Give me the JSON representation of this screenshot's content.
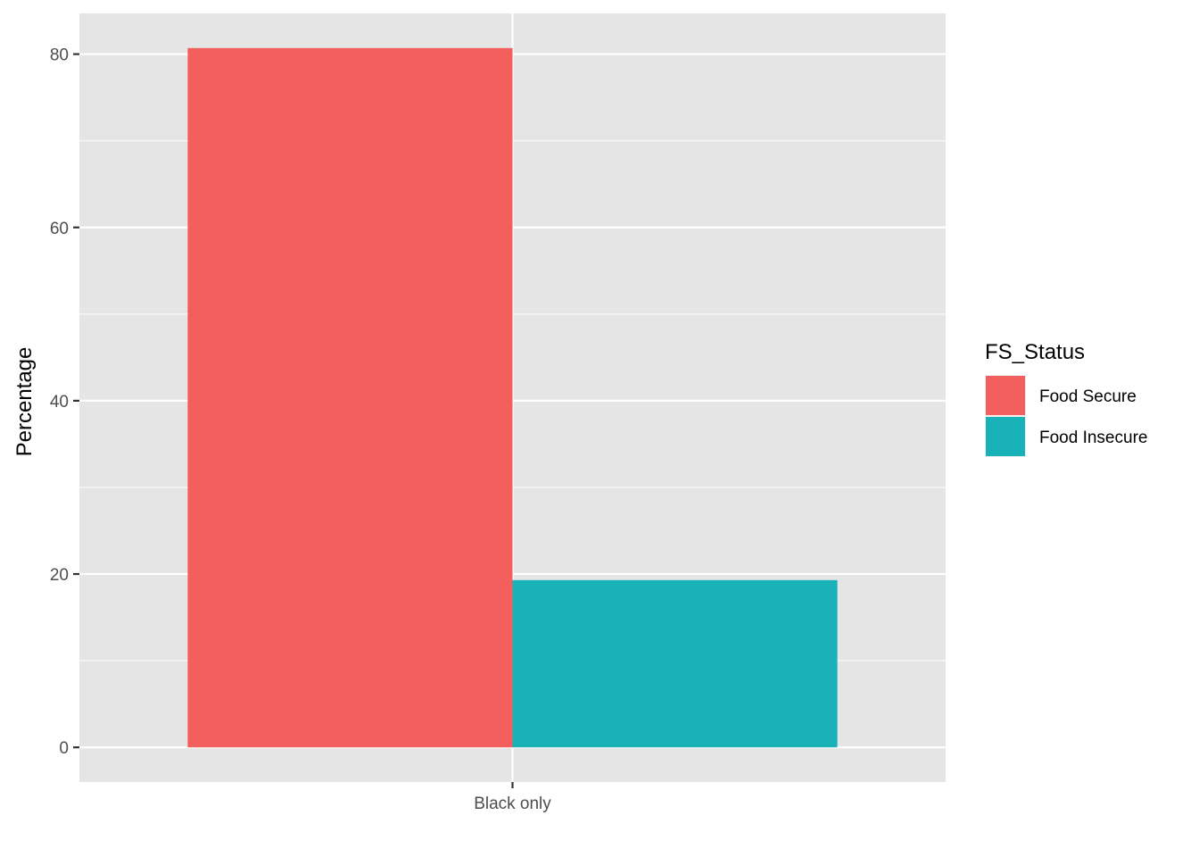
{
  "chart_data": {
    "type": "bar",
    "categories": [
      "Black only"
    ],
    "series": [
      {
        "name": "Food Secure",
        "values": [
          80.7
        ],
        "color": "#F25F5C"
      },
      {
        "name": "Food Insecure",
        "values": [
          19.3
        ],
        "color": "#19B2B8"
      }
    ],
    "xlabel": "",
    "ylabel": "Percentage",
    "ylim": [
      -4,
      84.7
    ],
    "yticks": [
      0,
      20,
      40,
      60,
      80
    ],
    "ytick_labels": [
      "0",
      "20",
      "40",
      "60",
      "80"
    ],
    "legend": {
      "title": "FS_Status",
      "position": "right"
    },
    "panel_background": "#E5E5E5",
    "grid": true,
    "bar_position": "dodge"
  }
}
